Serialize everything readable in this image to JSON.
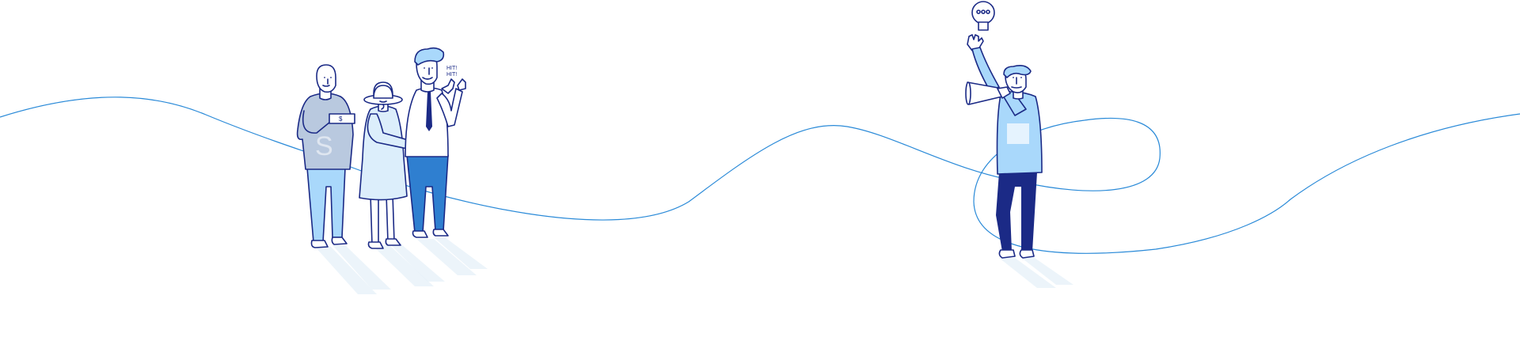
{
  "scene": {
    "background": "#ffffff",
    "colors": {
      "ink": "#1b2a86",
      "line": "#2a8ad8",
      "light_blue": "#a9d8fb",
      "pale_blue": "#dceefb",
      "grey_blue": "#b9c9df",
      "mid_blue": "#2f7fd0"
    }
  },
  "figures": {
    "bald_man": {
      "shirt_mark": "S",
      "cash_text": "$"
    },
    "lady_with_hat": {
      "card_text": "::"
    },
    "cheering_man": {
      "speech_line_1": "HIT!",
      "speech_line_2": "HIT!"
    },
    "megaphone_man": {
      "idea": "lightbulb-icon"
    }
  }
}
